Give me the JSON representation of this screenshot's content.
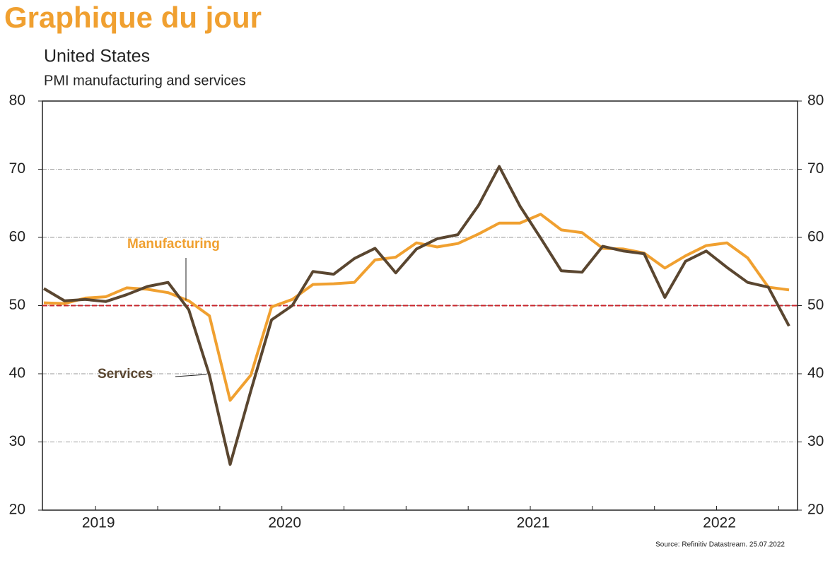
{
  "header": "Graphique du jour",
  "chart_data": {
    "type": "line",
    "title": "United States",
    "subtitle": "PMI manufacturing and services",
    "source": "Source: Refinitiv Datastream. 25.07.2022",
    "xlim": [
      0,
      36
    ],
    "xticks": [
      {
        "value": 2.5,
        "label": "2019"
      },
      {
        "value": 11.5,
        "label": "2020"
      },
      {
        "value": 23.5,
        "label": "2021"
      },
      {
        "value": 32.5,
        "label": "2022"
      }
    ],
    "xminorticks": [
      5.5,
      8.5,
      14.5,
      17.5,
      20.5,
      26.5,
      29.5,
      35.5
    ],
    "ylim": [
      20,
      80
    ],
    "yticks": [
      20,
      30,
      40,
      50,
      60,
      70,
      80
    ],
    "y2lim": [
      20,
      80
    ],
    "y2ticks": [
      20,
      30,
      40,
      50,
      60,
      70,
      80
    ],
    "grid": true,
    "grid_color": "#9a9a9a",
    "reference_line": {
      "value": 50,
      "color": "#c8262c"
    },
    "series": [
      {
        "name": "Manufacturing",
        "color": "#f0a030",
        "values": [
          50.4,
          50.3,
          51.1,
          51.3,
          52.6,
          52.4,
          51.9,
          50.7,
          48.5,
          36.1,
          39.8,
          49.8,
          50.9,
          53.1,
          53.2,
          53.4,
          56.7,
          57.1,
          59.2,
          58.6,
          59.1,
          60.5,
          62.1,
          62.1,
          63.4,
          61.1,
          60.7,
          58.4,
          58.3,
          57.7,
          55.5,
          57.3,
          58.8,
          59.2,
          57.0,
          52.7,
          52.3
        ]
      },
      {
        "name": "Services",
        "color": "#5a4630",
        "values": [
          52.5,
          50.7,
          50.9,
          50.6,
          51.6,
          52.8,
          53.4,
          49.4,
          39.8,
          26.7,
          37.5,
          47.9,
          50.0,
          55.0,
          54.6,
          56.9,
          58.4,
          54.8,
          58.3,
          59.8,
          60.4,
          64.7,
          70.4,
          64.6,
          59.9,
          55.1,
          54.9,
          58.7,
          58.0,
          57.6,
          51.2,
          56.5,
          58.0,
          55.6,
          53.4,
          52.7,
          47.0
        ]
      }
    ]
  }
}
